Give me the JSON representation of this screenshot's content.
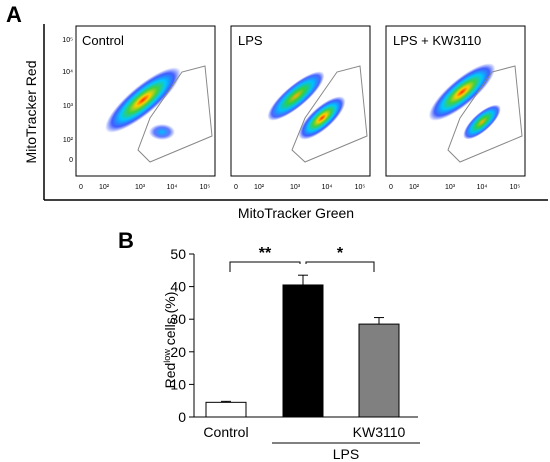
{
  "panel_a": {
    "letter": "A",
    "y_axis_label": "MitoTracker Red",
    "x_axis_label": "MitoTracker Green",
    "x_ticks": [
      "0",
      "10²",
      "10³",
      "10⁴",
      "10⁵"
    ],
    "y_ticks": [
      "10⁵",
      "10⁴",
      "10³",
      "10²",
      "0"
    ],
    "plots": [
      {
        "title": "Control"
      },
      {
        "title": "LPS"
      },
      {
        "title": "LPS + KW3110"
      }
    ]
  },
  "chart_data": {
    "type": "bar",
    "panel_letter": "B",
    "ylabel_main": "Red",
    "ylabel_sup": "low",
    "ylabel_rest": " cells (%)",
    "ylim": [
      0,
      50
    ],
    "yticks": [
      "0",
      "10",
      "20",
      "30",
      "40",
      "50"
    ],
    "categories": [
      "Control",
      "",
      "KW3110"
    ],
    "values": [
      4.5,
      40.5,
      28.5
    ],
    "errors": [
      0.3,
      3.0,
      2.0
    ],
    "bar_colors": [
      "#ffffff",
      "#000000",
      "#808080"
    ],
    "group_label": "LPS",
    "significance": [
      {
        "from": 0,
        "to": 1,
        "label": "**"
      },
      {
        "from": 1,
        "to": 2,
        "label": "*"
      }
    ]
  }
}
